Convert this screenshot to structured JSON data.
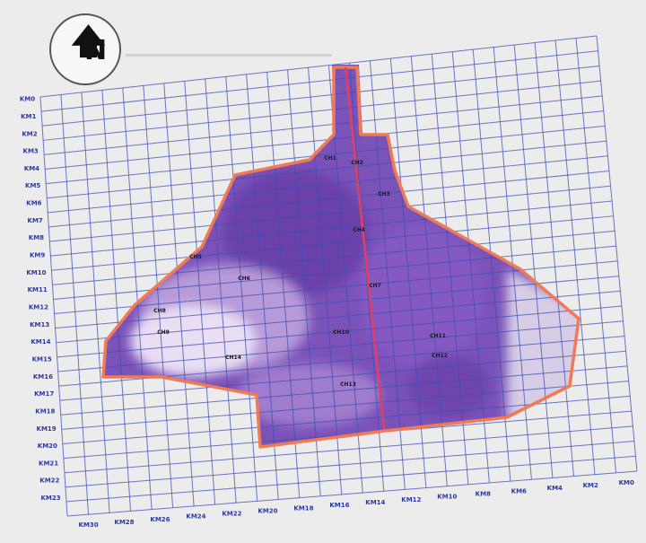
{
  "compass": {
    "letter": "N",
    "arrow_icon": "north-arrow-icon"
  },
  "grid_color": "#3d4fb5",
  "outline_color": "#f07a55",
  "axis_line_color": "#e04060",
  "row_labels": [
    "KM0",
    "KM1",
    "KM2",
    "KM3",
    "KM4",
    "KM5",
    "KM6",
    "KM7",
    "KM8",
    "KM9",
    "KM10",
    "KM11",
    "KM12",
    "KM13",
    "KM14",
    "KM15",
    "KM16",
    "KM17",
    "KM18",
    "KM19",
    "KM20",
    "KM21",
    "KM22",
    "KM23"
  ],
  "column_labels": [
    "KM30",
    "KM28",
    "KM26",
    "KM24",
    "KM22",
    "KM20",
    "KM18",
    "KM16",
    "KM14",
    "KM12",
    "KM10",
    "KM8",
    "KM6",
    "KM4",
    "KM2",
    "KM0"
  ],
  "point_labels": [
    "CH1",
    "CH2",
    "CH3",
    "CH4",
    "CH5",
    "CH6",
    "CH7",
    "CH8",
    "CH9",
    "CH10",
    "CH11",
    "CH12",
    "CH13",
    "CH14"
  ]
}
